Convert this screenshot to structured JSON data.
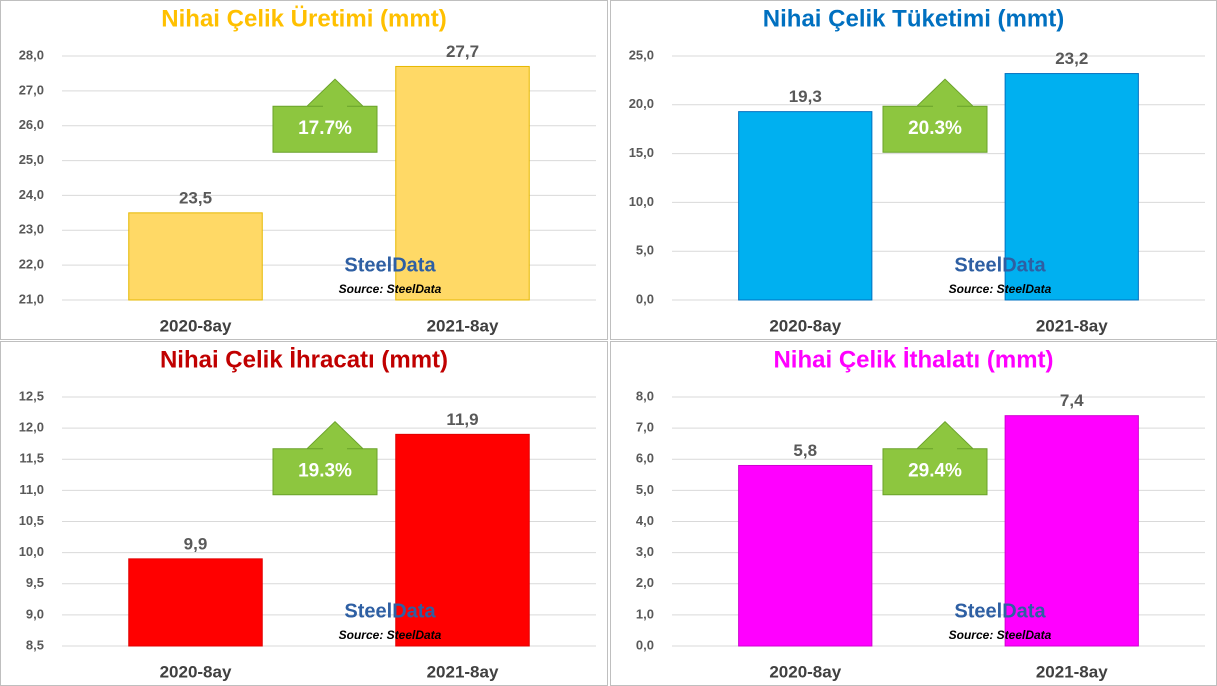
{
  "chart_data": [
    {
      "type": "bar",
      "title": "Nihai Çelik Üretimi (mmt)",
      "categories": [
        "2020-8ay",
        "2021-8ay"
      ],
      "values": [
        23.5,
        27.7
      ],
      "value_labels": [
        "23,5",
        "27,7"
      ],
      "color": "#ffd966",
      "title_color": "#ffc000",
      "ylim": [
        21,
        28
      ],
      "yticks": [
        {
          "value": 21,
          "label": "21,0"
        },
        {
          "value": 22,
          "label": "22,0"
        },
        {
          "value": 23,
          "label": "23,0"
        },
        {
          "value": 24,
          "label": "24,0"
        },
        {
          "value": 25,
          "label": "25,0"
        },
        {
          "value": 26,
          "label": "26,0"
        },
        {
          "value": 27,
          "label": "27,0"
        },
        {
          "value": 28,
          "label": "28,0"
        }
      ],
      "grid": true,
      "annotations": [
        "17.7%",
        "SteelData",
        "Source: SteelData"
      ]
    },
    {
      "type": "bar",
      "title": "Nihai Çelik Tüketimi (mmt)",
      "categories": [
        "2020-8ay",
        "2021-8ay"
      ],
      "values": [
        19.3,
        23.2
      ],
      "value_labels": [
        "19,3",
        "23,2"
      ],
      "color": "#00b0f0",
      "title_color": "#0070c0",
      "ylim": [
        0,
        25
      ],
      "yticks": [
        {
          "value": 0,
          "label": "0,0"
        },
        {
          "value": 5,
          "label": "5,0"
        },
        {
          "value": 10,
          "label": "10,0"
        },
        {
          "value": 15,
          "label": "15,0"
        },
        {
          "value": 20,
          "label": "20,0"
        },
        {
          "value": 25,
          "label": "25,0"
        }
      ],
      "grid": true,
      "annotations": [
        "20.3%",
        "SteelData",
        "Source: SteelData"
      ]
    },
    {
      "type": "bar",
      "title": "Nihai Çelik İhracatı (mmt)",
      "categories": [
        "2020-8ay",
        "2021-8ay"
      ],
      "values": [
        9.9,
        11.9
      ],
      "value_labels": [
        "9,9",
        "11,9"
      ],
      "color": "#ff0000",
      "title_color": "#c00000",
      "ylim": [
        8.5,
        12.5
      ],
      "yticks": [
        {
          "value": 8.5,
          "label": "8,5"
        },
        {
          "value": 9,
          "label": "9,0"
        },
        {
          "value": 9.5,
          "label": "9,5"
        },
        {
          "value": 10,
          "label": "10,0"
        },
        {
          "value": 10.5,
          "label": "10,5"
        },
        {
          "value": 11,
          "label": "11,0"
        },
        {
          "value": 11.5,
          "label": "11,5"
        },
        {
          "value": 12,
          "label": "12,0"
        },
        {
          "value": 12.5,
          "label": "12,5"
        }
      ],
      "grid": true,
      "annotations": [
        "19.3%",
        "SteelData",
        "Source: SteelData"
      ]
    },
    {
      "type": "bar",
      "title": "Nihai Çelik İthalatı (mmt)",
      "categories": [
        "2020-8ay",
        "2021-8ay"
      ],
      "values": [
        5.8,
        7.4
      ],
      "value_labels": [
        "5,8",
        "7,4"
      ],
      "color": "#ff00ff",
      "title_color": "#ff00ff",
      "ylim": [
        0,
        8
      ],
      "yticks": [
        {
          "value": 0,
          "label": "0,0"
        },
        {
          "value": 1,
          "label": "1,0"
        },
        {
          "value": 2,
          "label": "2,0"
        },
        {
          "value": 3,
          "label": "3,0"
        },
        {
          "value": 4,
          "label": "4,0"
        },
        {
          "value": 5,
          "label": "5,0"
        },
        {
          "value": 6,
          "label": "6,0"
        },
        {
          "value": 7,
          "label": "7,0"
        },
        {
          "value": 8,
          "label": "8,0"
        }
      ],
      "grid": true,
      "annotations": [
        "29.4%",
        "SteelData",
        "Source: SteelData"
      ]
    }
  ]
}
